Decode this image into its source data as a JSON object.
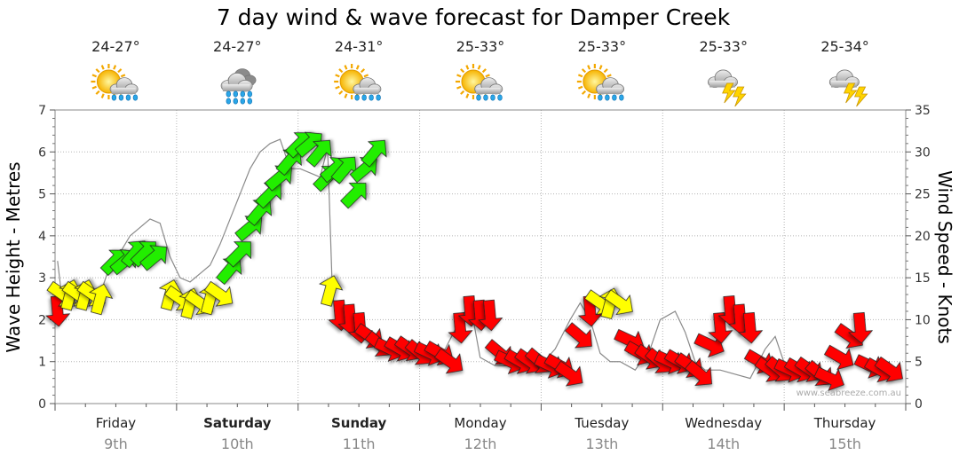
{
  "chart_data": {
    "type": "line",
    "title": "7 day wind & wave forecast for Damper Creek",
    "ylabel": "Wave Height - Metres",
    "y2label": "Wind Speed - Knots",
    "ylim": [
      0,
      7
    ],
    "y2lim": [
      0,
      35
    ],
    "yticks": [
      "0",
      "1",
      "2",
      "3",
      "4",
      "5",
      "6",
      "7"
    ],
    "y2ticks": [
      "0",
      "5",
      "10",
      "15",
      "20",
      "25",
      "30",
      "35"
    ],
    "grid": true,
    "days": [
      {
        "name": "Friday",
        "date": "9th",
        "bold": false,
        "temp": "24-27°",
        "icon": "sun-rain-cloud-icon"
      },
      {
        "name": "Saturday",
        "date": "10th",
        "bold": true,
        "temp": "24-27°",
        "icon": "heavy-rain-cloud-icon"
      },
      {
        "name": "Sunday",
        "date": "11th",
        "bold": true,
        "temp": "24-31°",
        "icon": "sun-rain-cloud-icon"
      },
      {
        "name": "Monday",
        "date": "12th",
        "bold": false,
        "temp": "25-33°",
        "icon": "sun-rain-cloud-icon"
      },
      {
        "name": "Tuesday",
        "date": "13th",
        "bold": false,
        "temp": "25-33°",
        "icon": "sun-rain-cloud-icon"
      },
      {
        "name": "Wednesday",
        "date": "14th",
        "bold": false,
        "temp": "25-33°",
        "icon": "thunderstorm-cloud-icon"
      },
      {
        "name": "Thursday",
        "date": "15th",
        "bold": false,
        "temp": "25-34°",
        "icon": "thunderstorm-cloud-icon"
      }
    ],
    "series": [
      {
        "values": [
          [
            0.05,
            3.4
          ],
          [
            0.15,
            2.4
          ],
          [
            0.3,
            2.5
          ],
          [
            0.5,
            2.6
          ],
          [
            0.7,
            2.5
          ],
          [
            0.9,
            2.6
          ],
          [
            1.1,
            3.3
          ],
          [
            1.3,
            3.6
          ],
          [
            1.5,
            4.0
          ],
          [
            1.7,
            4.2
          ],
          [
            1.9,
            4.4
          ],
          [
            2.1,
            4.3
          ],
          [
            2.3,
            3.5
          ],
          [
            2.5,
            3.0
          ],
          [
            2.7,
            2.9
          ],
          [
            2.9,
            3.1
          ],
          [
            3.1,
            3.3
          ],
          [
            3.3,
            3.8
          ],
          [
            3.5,
            4.4
          ],
          [
            3.7,
            5.0
          ],
          [
            3.9,
            5.6
          ],
          [
            4.1,
            6.0
          ],
          [
            4.3,
            6.2
          ],
          [
            4.5,
            6.3
          ],
          [
            4.7,
            5.6
          ],
          [
            4.9,
            5.6
          ],
          [
            5.1,
            5.5
          ],
          [
            5.3,
            5.4
          ],
          [
            5.45,
            6.1
          ],
          [
            5.55,
            2.5
          ],
          [
            5.8,
            2.0
          ],
          [
            6.0,
            1.8
          ],
          [
            6.3,
            1.6
          ],
          [
            6.6,
            1.4
          ],
          [
            6.9,
            1.3
          ],
          [
            7.2,
            1.2
          ],
          [
            7.5,
            1.1
          ],
          [
            7.8,
            1.3
          ],
          [
            8.1,
            2.0
          ],
          [
            8.3,
            2.4
          ],
          [
            8.5,
            1.1
          ],
          [
            8.8,
            0.9
          ],
          [
            9.1,
            0.9
          ],
          [
            9.4,
            0.9
          ],
          [
            9.7,
            0.9
          ],
          [
            10.0,
            1.3
          ],
          [
            10.3,
            2.0
          ],
          [
            10.5,
            2.4
          ],
          [
            10.7,
            2.0
          ],
          [
            10.9,
            1.2
          ],
          [
            11.1,
            1.0
          ],
          [
            11.3,
            1.0
          ],
          [
            11.6,
            0.8
          ],
          [
            11.9,
            1.3
          ],
          [
            12.1,
            2.0
          ],
          [
            12.4,
            2.2
          ],
          [
            12.6,
            1.7
          ],
          [
            12.8,
            1.0
          ],
          [
            13.0,
            0.8
          ],
          [
            13.3,
            0.8
          ],
          [
            13.6,
            0.7
          ],
          [
            13.9,
            0.6
          ],
          [
            14.2,
            1.3
          ],
          [
            14.4,
            1.6
          ],
          [
            14.6,
            0.9
          ],
          [
            14.8,
            0.8
          ]
        ]
      },
      {
        "values": [
          [
            0.05,
            11
          ],
          [
            0.15,
            13
          ],
          [
            0.3,
            13
          ],
          [
            0.45,
            13
          ],
          [
            0.6,
            13
          ],
          [
            0.75,
            13
          ],
          [
            0.9,
            12.5
          ],
          [
            1.2,
            17
          ],
          [
            1.4,
            17
          ],
          [
            1.6,
            18
          ],
          [
            1.8,
            18
          ],
          [
            2.0,
            17.5
          ],
          [
            2.3,
            13
          ],
          [
            2.5,
            12.5
          ],
          [
            2.7,
            12
          ],
          [
            2.9,
            12
          ],
          [
            3.1,
            12.5
          ],
          [
            3.3,
            13
          ],
          [
            3.5,
            16
          ],
          [
            3.7,
            18
          ],
          [
            3.9,
            21
          ],
          [
            4.1,
            23
          ],
          [
            4.3,
            25
          ],
          [
            4.5,
            27
          ],
          [
            4.7,
            29
          ],
          [
            4.9,
            31
          ],
          [
            5.1,
            31
          ],
          [
            5.3,
            30
          ],
          [
            5.45,
            27
          ],
          [
            5.6,
            28
          ],
          [
            5.8,
            28
          ],
          [
            6.0,
            25
          ],
          [
            6.2,
            28
          ],
          [
            6.4,
            30
          ],
          [
            5.5,
            13.5
          ],
          [
            5.7,
            10.5
          ],
          [
            5.9,
            10
          ],
          [
            6.1,
            9
          ],
          [
            6.3,
            8
          ],
          [
            6.5,
            7
          ],
          [
            6.7,
            6.5
          ],
          [
            6.9,
            6.5
          ],
          [
            7.1,
            6.5
          ],
          [
            7.3,
            6
          ],
          [
            7.5,
            6
          ],
          [
            7.7,
            6
          ],
          [
            7.9,
            5
          ],
          [
            8.1,
            9
          ],
          [
            8.3,
            11
          ],
          [
            8.5,
            10.5
          ],
          [
            8.7,
            10.5
          ],
          [
            8.9,
            6
          ],
          [
            9.1,
            5
          ],
          [
            9.3,
            5
          ],
          [
            9.5,
            5
          ],
          [
            9.7,
            5
          ],
          [
            9.9,
            4.5
          ],
          [
            10.1,
            4.5
          ],
          [
            10.3,
            3.5
          ],
          [
            10.5,
            8
          ],
          [
            10.7,
            11
          ],
          [
            10.9,
            12
          ],
          [
            11.1,
            12
          ],
          [
            11.3,
            12
          ],
          [
            11.5,
            7.5
          ],
          [
            11.7,
            6
          ],
          [
            11.9,
            5.5
          ],
          [
            12.1,
            5
          ],
          [
            12.3,
            5
          ],
          [
            12.5,
            5
          ],
          [
            12.7,
            4.5
          ],
          [
            12.9,
            3.5
          ],
          [
            13.1,
            7
          ],
          [
            13.3,
            9
          ],
          [
            13.5,
            11
          ],
          [
            13.7,
            10
          ],
          [
            13.9,
            9
          ],
          [
            14.1,
            5
          ],
          [
            14.3,
            4
          ],
          [
            14.5,
            4
          ],
          [
            14.7,
            4
          ],
          [
            14.9,
            4
          ],
          [
            15.1,
            4
          ],
          [
            15.3,
            3.5
          ],
          [
            15.5,
            3
          ],
          [
            15.7,
            5.5
          ],
          [
            15.9,
            8
          ],
          [
            16.1,
            9
          ],
          [
            16.3,
            4.5
          ],
          [
            16.5,
            4
          ],
          [
            16.7,
            4
          ]
        ]
      }
    ],
    "watermark": "www.seabreeze.com.au"
  }
}
